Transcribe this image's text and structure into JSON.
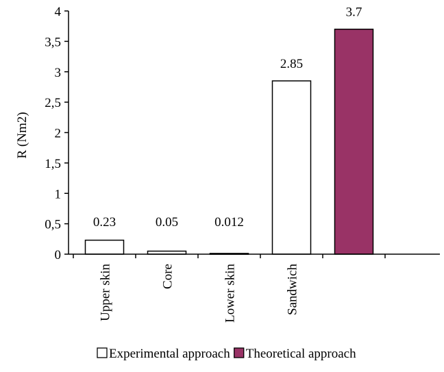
{
  "chart_data": {
    "type": "bar",
    "categories": [
      "Upper skin",
      "Core",
      "Lower skin",
      "Sandwich",
      ""
    ],
    "series": [
      {
        "name": "Experimental approach",
        "color": "#ffffff",
        "values": [
          0.23,
          0.05,
          0.012,
          2.85,
          null
        ],
        "labels": [
          "0.23",
          "0.05",
          "0.012",
          "2.85",
          ""
        ]
      },
      {
        "name": "Theoretical approach",
        "color": "#993366",
        "values": [
          null,
          null,
          null,
          null,
          3.7
        ],
        "labels": [
          "",
          "",
          "",
          "",
          "3.7"
        ]
      }
    ],
    "ylabel": "R (Nm2)",
    "ylim": [
      0,
      4
    ],
    "yticks": [
      {
        "value": 0,
        "label": "0"
      },
      {
        "value": 0.5,
        "label": "0,5"
      },
      {
        "value": 1,
        "label": "1"
      },
      {
        "value": 1.5,
        "label": "1,5"
      },
      {
        "value": 2,
        "label": "2"
      },
      {
        "value": 2.5,
        "label": "2,5"
      },
      {
        "value": 3,
        "label": "3"
      },
      {
        "value": 3.5,
        "label": "3,5"
      },
      {
        "value": 4,
        "label": "4"
      }
    ],
    "grid": false,
    "legend_position": "bottom"
  }
}
